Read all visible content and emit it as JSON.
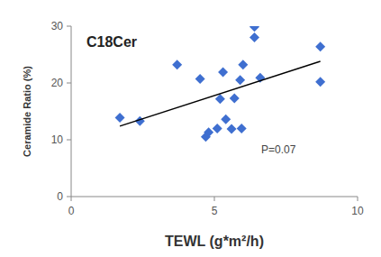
{
  "chart_data": {
    "type": "scatter",
    "title": "C18Cer",
    "x_label": "TEWL (g*m²/h)",
    "y_label": "Ceramide Ratio (%)",
    "annotation": "P=0.07",
    "series": [
      {
        "type": "scatter",
        "marker": "diamond",
        "color": "#3f6fd0",
        "x": [
          1.7,
          2.4,
          3.7,
          4.5,
          4.8,
          4.7,
          5.1,
          5.2,
          5.3,
          5.4,
          5.6,
          5.7,
          5.9,
          6.0,
          5.95,
          6.4,
          6.4,
          6.6,
          8.7,
          8.7
        ],
        "values": [
          13.9,
          13.3,
          23.2,
          20.7,
          11.3,
          10.5,
          12.0,
          17.2,
          21.9,
          13.6,
          11.9,
          17.3,
          20.5,
          23.2,
          12.0,
          29.9,
          28.0,
          20.9,
          26.4,
          20.2
        ]
      },
      {
        "type": "line",
        "line_style": "solid",
        "color": "#000000",
        "x": [
          1.7,
          8.7
        ],
        "values": [
          12.4,
          23.8
        ]
      }
    ],
    "xlim": [
      0,
      10
    ],
    "xticks": [
      0,
      5,
      10
    ],
    "ylim": [
      0,
      30
    ],
    "yticks": [
      0,
      10,
      20,
      30
    ],
    "grid": false
  }
}
